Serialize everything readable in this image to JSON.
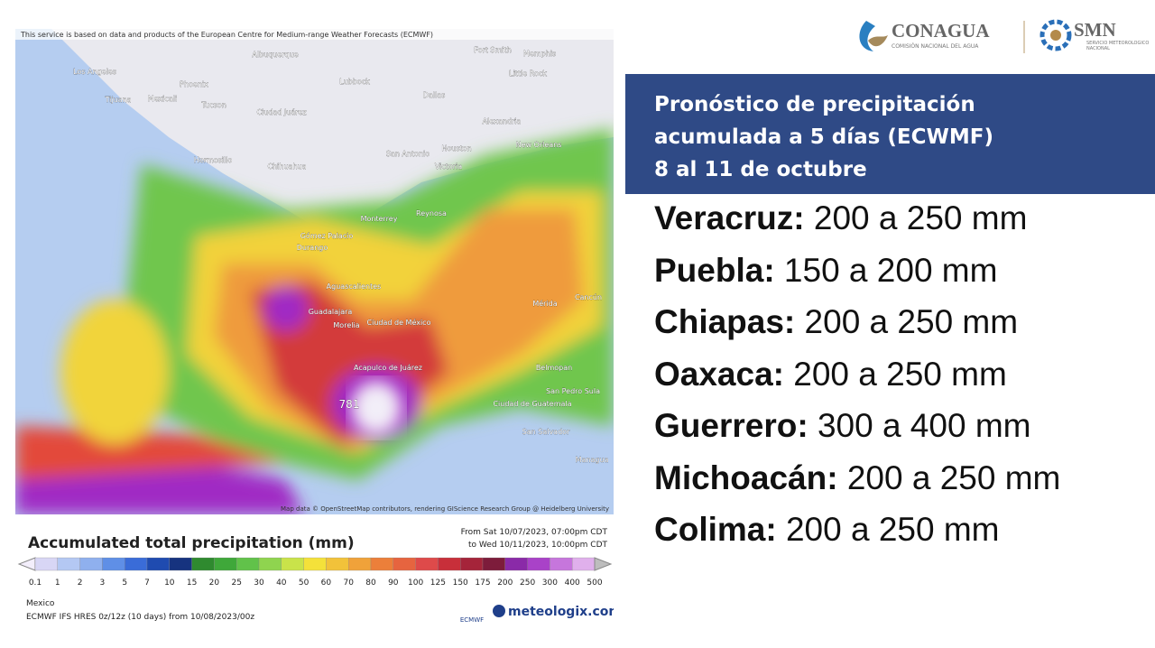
{
  "map": {
    "notice": "This service is based on data and products of the European Centre for Medium-range Weather Forecasts (ECMWF)",
    "attribution": "Map data © OpenStreetMap contributors, rendering GIScience Research Group @ Heidelberg University",
    "places": [
      "Los Angeles",
      "Tijuana",
      "Mexicali",
      "Phoenix",
      "Tucson",
      "Albuquerque",
      "Lubbock",
      "Dallas",
      "Fort Smith",
      "Memphis",
      "Little Rock",
      "Alexandria",
      "Houston",
      "New Orleans",
      "San Antonio",
      "Victoria",
      "Ciudad Juárez",
      "Chihuahua",
      "Hermosillo",
      "Monterrey",
      "Reynosa",
      "Gómez Palacio",
      "Durango",
      "Aguascalientes",
      "Guadalajara",
      "Morelia",
      "Ciudad de México",
      "Acapulco de Juárez",
      "Mérida",
      "Cancún",
      "Belmopan",
      "San Pedro Sula",
      "Ciudad de Guatemala",
      "San Salvador",
      "Managua",
      "781"
    ]
  },
  "legend": {
    "title": "Accumulated total precipitation (mm)",
    "from": "From Sat 10/07/2023, 07:00pm CDT",
    "to": "to Wed 10/11/2023, 10:00pm CDT",
    "labels": [
      "0.1",
      "1",
      "2",
      "3",
      "5",
      "7",
      "10",
      "15",
      "20",
      "25",
      "30",
      "40",
      "50",
      "60",
      "70",
      "80",
      "90",
      "100",
      "125",
      "150",
      "175",
      "200",
      "250",
      "300",
      "400",
      "500"
    ],
    "region": "Mexico",
    "model": "ECMWF IFS HRES 0z/12z (10 days) from 10/08/2023/00z",
    "ecmwf": "ECMWF",
    "brand": "meteologix.com"
  },
  "logos": {
    "conagua": "CONAGUA",
    "conagua_sub": "COMISIÓN NACIONAL DEL AGUA",
    "smn": "SMN",
    "smn_sub": "SERVICIO METEOROLÓGICO NACIONAL"
  },
  "header": {
    "lines": [
      "Pronóstico de precipitación",
      "acumulada a 5 días (ECWMF)",
      "8 al 11 de octubre"
    ]
  },
  "items": [
    {
      "name": "Veracruz:",
      "amount": "200 a 250 mm"
    },
    {
      "name": "Puebla:",
      "amount": "150 a 200 mm"
    },
    {
      "name": "Chiapas:",
      "amount": "200 a 250 mm"
    },
    {
      "name": "Oaxaca:",
      "amount": "200 a 250 mm"
    },
    {
      "name": "Guerrero:",
      "amount": "300 a 400 mm"
    },
    {
      "name": "Michoacán:",
      "amount": "200 a 250 mm"
    },
    {
      "name": "Colima:",
      "amount": "200 a 250 mm"
    }
  ]
}
